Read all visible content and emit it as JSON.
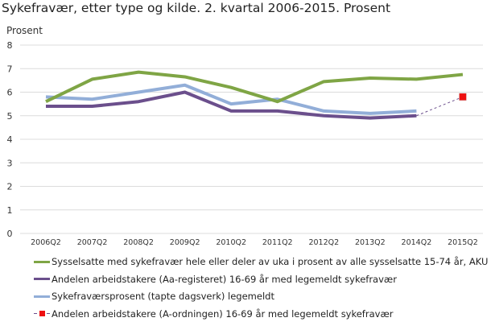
{
  "chart_data": {
    "type": "line",
    "title": "Sykefravær, etter type og kilde. 2. kvartal 2006-2015. Prosent",
    "ylabel": "Prosent",
    "xlabel": "",
    "ylim": [
      0,
      8
    ],
    "yticks": [
      "0",
      "1",
      "2",
      "3",
      "4",
      "5",
      "6",
      "7",
      "8"
    ],
    "grid": true,
    "legend_position": "bottom",
    "categories": [
      "2006Q2",
      "2007Q2",
      "2008Q2",
      "2009Q2",
      "2010Q2",
      "2011Q2",
      "2012Q2",
      "2013Q2",
      "2014Q2",
      "2015Q2"
    ],
    "series": [
      {
        "name": "Sysselsatte med sykefravær hele eller deler av uka i prosent av alle sysselsatte 15-74 år, AKU",
        "color": "#7fa545",
        "values": [
          5.6,
          6.55,
          6.85,
          6.65,
          6.2,
          5.6,
          6.45,
          6.6,
          6.55,
          6.75
        ]
      },
      {
        "name": "Andelen arbeidstakere (Aa-registeret) 16-69 år med legemeldt sykefravær",
        "color": "#6b4f8c",
        "values": [
          5.4,
          5.4,
          5.6,
          6.0,
          5.2,
          5.2,
          5.0,
          4.9,
          5.0,
          null
        ]
      },
      {
        "name": "Sykefraværsprosent (tapte dagsverk) legemeldt",
        "color": "#92aed8",
        "values": [
          5.8,
          5.7,
          6.0,
          6.3,
          5.5,
          5.7,
          5.2,
          5.1,
          5.2,
          null
        ]
      },
      {
        "name": "Andelen arbeidstakere (A-ordningen) 16-69 år med legemeldt sykefravær",
        "color": "#ee1111",
        "marker": "square",
        "values": [
          null,
          null,
          null,
          null,
          null,
          null,
          null,
          null,
          null,
          5.8
        ]
      }
    ]
  }
}
